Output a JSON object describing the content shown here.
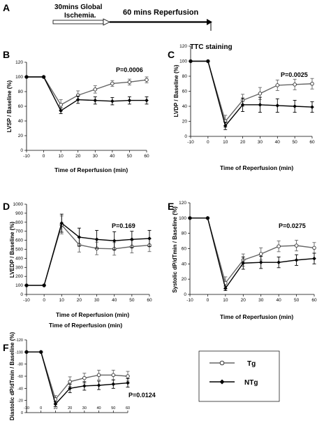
{
  "protocol": {
    "panel_letter": "A",
    "ischemia_label_line1": "30mins Global",
    "ischemia_label_line2": "Ischemia.",
    "reperfusion_label": "60 mins Reperfusion",
    "staining_label": "TTC staining"
  },
  "legend": {
    "tg_label": "Tg",
    "ntg_label": "NTg"
  },
  "chart_data": [
    {
      "id": "B",
      "type": "line",
      "panel_letter": "B",
      "xlabel": "Time of Reperfusion (min)",
      "ylabel": "LVSP / Baseline (%)",
      "pvalue": "P=0.0006",
      "x": [
        -10,
        0,
        10,
        20,
        30,
        40,
        50,
        60
      ],
      "xticks": [
        -10,
        0,
        10,
        20,
        30,
        40,
        50,
        60
      ],
      "yticks": [
        0,
        20,
        40,
        60,
        80,
        100,
        120
      ],
      "xlim": [
        -10,
        60
      ],
      "ylim": [
        0,
        120
      ],
      "series": [
        {
          "name": "Tg",
          "values": [
            100,
            100,
            62,
            75,
            83,
            91,
            93,
            96
          ],
          "err": [
            0,
            0,
            7,
            6,
            5,
            4,
            4,
            4
          ]
        },
        {
          "name": "NTg",
          "values": [
            100,
            100,
            54,
            69,
            68,
            67,
            68,
            68
          ],
          "err": [
            0,
            0,
            4,
            5,
            5,
            5,
            5,
            5
          ]
        }
      ]
    },
    {
      "id": "C",
      "type": "line",
      "panel_letter": "C",
      "xlabel": "Time of Reperfusion (min)",
      "ylabel": "LVDP / Baseline (%)",
      "pvalue": "P=0.0025",
      "x": [
        -10,
        0,
        10,
        20,
        30,
        40,
        50,
        60
      ],
      "xticks": [
        -10,
        0,
        10,
        20,
        30,
        40,
        50,
        60
      ],
      "yticks": [
        0,
        20,
        40,
        60,
        80,
        100,
        120
      ],
      "xlim": [
        -10,
        60
      ],
      "ylim": [
        0,
        120
      ],
      "series": [
        {
          "name": "Tg",
          "values": [
            100,
            100,
            20,
            48,
            57,
            68,
            69,
            70
          ],
          "err": [
            0,
            0,
            8,
            8,
            8,
            7,
            7,
            7
          ]
        },
        {
          "name": "NTg",
          "values": [
            100,
            100,
            14,
            42,
            42,
            41,
            40,
            39
          ],
          "err": [
            0,
            0,
            5,
            9,
            10,
            9,
            8,
            7
          ]
        }
      ]
    },
    {
      "id": "D",
      "type": "line",
      "panel_letter": "D",
      "xlabel": "Time of Reperfusion (min)",
      "ylabel": "LVEDP / Baseline (%)",
      "pvalue": "P=0.169",
      "x": [
        -10,
        0,
        10,
        20,
        30,
        40,
        50,
        60
      ],
      "xticks": [
        -10,
        0,
        10,
        20,
        30,
        40,
        50,
        60
      ],
      "yticks": [
        0,
        100,
        200,
        300,
        400,
        500,
        600,
        700,
        800,
        900,
        1000
      ],
      "xlim": [
        -10,
        60
      ],
      "ylim": [
        0,
        1000
      ],
      "series": [
        {
          "name": "Tg",
          "values": [
            100,
            100,
            770,
            550,
            510,
            505,
            530,
            545
          ],
          "err": [
            0,
            0,
            100,
            80,
            70,
            70,
            70,
            70
          ]
        },
        {
          "name": "NTg",
          "values": [
            100,
            100,
            790,
            635,
            610,
            595,
            610,
            620
          ],
          "err": [
            0,
            0,
            100,
            100,
            100,
            100,
            90,
            90
          ]
        }
      ]
    },
    {
      "id": "E",
      "type": "line",
      "panel_letter": "E",
      "xlabel": "Time of Reperfusion (min)",
      "ylabel": "Systolic dP/dTmin / Baseline (%)",
      "pvalue": "P=0.0275",
      "x": [
        -10,
        0,
        10,
        20,
        30,
        40,
        50,
        60
      ],
      "xticks": [
        -10,
        0,
        10,
        20,
        30,
        40,
        50,
        60
      ],
      "yticks": [
        0,
        20,
        40,
        60,
        80,
        100,
        120
      ],
      "xlim": [
        -10,
        60
      ],
      "ylim": [
        0,
        120
      ],
      "series": [
        {
          "name": "Tg",
          "values": [
            100,
            100,
            15,
            45,
            53,
            63,
            64,
            61
          ],
          "err": [
            0,
            0,
            8,
            8,
            8,
            7,
            7,
            7
          ]
        },
        {
          "name": "NTg",
          "values": [
            100,
            100,
            8,
            41,
            42,
            42,
            45,
            47
          ],
          "err": [
            0,
            0,
            3,
            8,
            8,
            7,
            7,
            7
          ]
        }
      ]
    },
    {
      "id": "F",
      "type": "line",
      "panel_letter": "F",
      "xlabel": "Time of Reperfusion (min)",
      "ylabel": "Diastolic dP/dTmin / Baseline (%)",
      "pvalue": "P=0.0124",
      "x": [
        -10,
        0,
        10,
        20,
        30,
        40,
        50,
        60
      ],
      "xticks": [
        -10,
        0,
        10,
        20,
        30,
        40,
        50,
        60
      ],
      "yticks": [
        0,
        -20,
        -40,
        -60,
        -80,
        -100,
        -120
      ],
      "xlim": [
        -10,
        60
      ],
      "ylim": [
        -120,
        0
      ],
      "series": [
        {
          "name": "Tg",
          "values": [
            -100,
            -100,
            -22,
            -51,
            -57,
            -62,
            -62,
            -60
          ],
          "err": [
            0,
            0,
            6,
            8,
            8,
            8,
            8,
            8
          ]
        },
        {
          "name": "NTg",
          "values": [
            -100,
            -100,
            -14,
            -40,
            -44,
            -45,
            -47,
            -49
          ],
          "err": [
            0,
            0,
            4,
            7,
            7,
            7,
            7,
            7
          ]
        }
      ]
    }
  ]
}
